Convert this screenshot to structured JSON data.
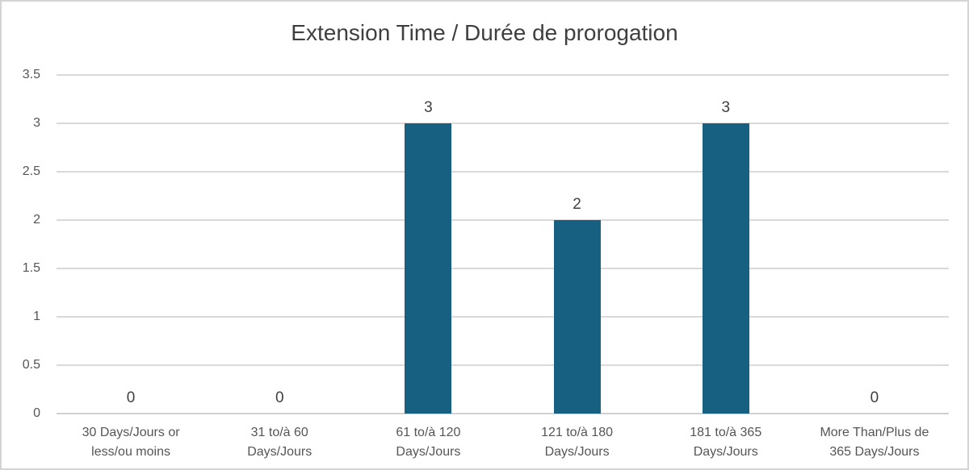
{
  "chart_data": {
    "type": "bar",
    "title": "Extension Time / Durée de prorogation",
    "categories": [
      "30 Days/Jours or\nless/ou moins",
      "31 to/à 60\nDays/Jours",
      "61 to/à 120\nDays/Jours",
      "121 to/à 180\nDays/Jours",
      "181 to/à 365\nDays/Jours",
      "More Than/Plus de\n365 Days/Jours"
    ],
    "values": [
      0,
      0,
      3,
      2,
      3,
      0
    ],
    "data_labels": [
      "0",
      "0",
      "3",
      "2",
      "3",
      "0"
    ],
    "xlabel": "",
    "ylabel": "",
    "ylim": [
      0,
      3.5
    ],
    "yticks": [
      0,
      0.5,
      1,
      1.5,
      2,
      2.5,
      3,
      3.5
    ],
    "ytick_labels": [
      "0",
      "0.5",
      "1",
      "1.5",
      "2",
      "2.5",
      "3",
      "3.5"
    ],
    "grid": true,
    "legend": false,
    "colors": {
      "bar": "#176082",
      "gridline": "#d9d9d9",
      "axis_line": "#d0d0d0",
      "title_text": "#3f3f3f",
      "tick_text": "#555555",
      "data_label_text": "#3f3f3f",
      "frame_border": "#d4d4d4",
      "background": "#ffffff"
    }
  }
}
